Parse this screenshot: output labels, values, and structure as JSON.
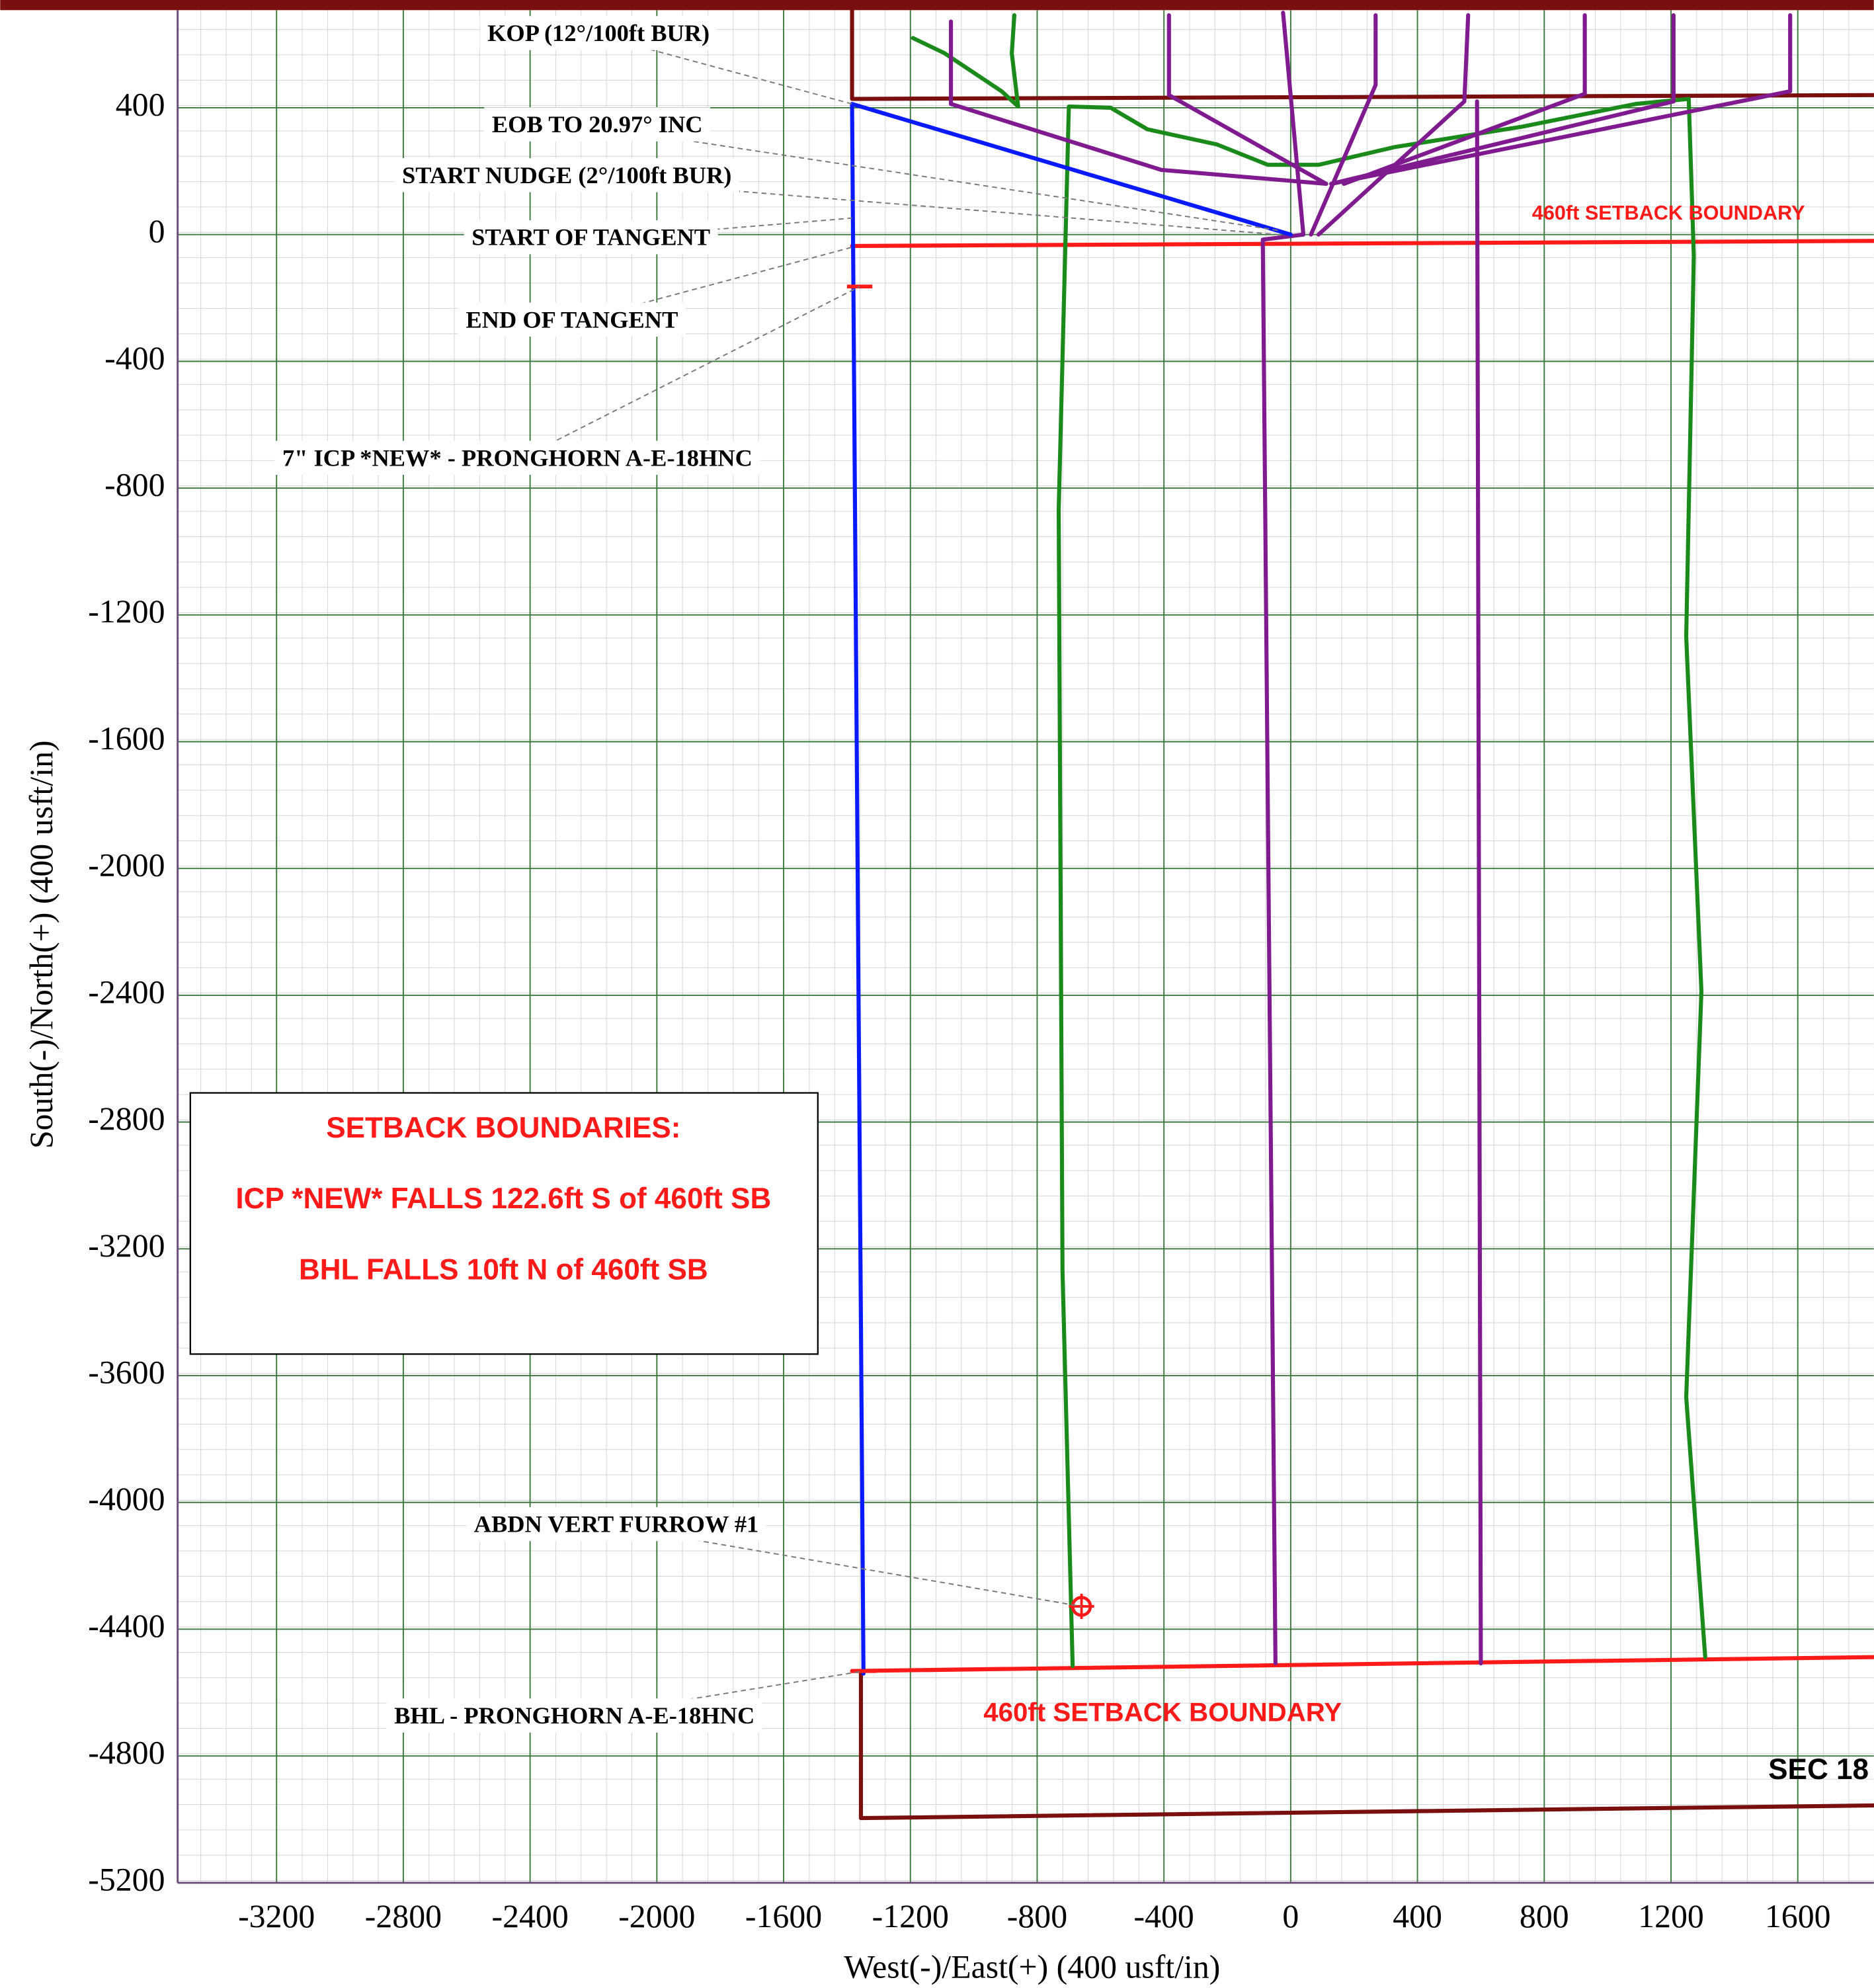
{
  "chart_data": {
    "type": "line",
    "xlabel": "West(-)/East(+) (400 usft/in)",
    "ylabel": "South(-)/North(+) (400 usft/in)",
    "xlim": [
      -3512,
      1840
    ],
    "ylim": [
      -5200,
      708
    ],
    "xticks": [
      -3200,
      -2800,
      -2400,
      -2000,
      -1600,
      -1200,
      -800,
      -400,
      0,
      400,
      800,
      1200,
      1600
    ],
    "yticks": [
      400,
      0,
      -400,
      -800,
      -1200,
      -1600,
      -2000,
      -2400,
      -2800,
      -3200,
      -3600,
      -4000,
      -4400,
      -4800,
      -5200
    ],
    "grid": true,
    "series": [
      {
        "color": "#7a0f0f",
        "x": [
          -1384,
          -1384,
          1840
        ],
        "values": [
          708,
          428,
          440
        ]
      },
      {
        "color": "#7a0f0f",
        "x": [
          -1356,
          -1356,
          1840
        ],
        "values": [
          -4532,
          -4996,
          -4956
        ]
      },
      {
        "color": "#ff1a1a",
        "x": [
          -1384,
          1840
        ],
        "values": [
          -36,
          -20
        ]
      },
      {
        "color": "#ff1a1a",
        "x": [
          -1384,
          1840
        ],
        "values": [
          -4532,
          -4488
        ]
      },
      {
        "color": "#1a8a1a",
        "x": [
          -1192,
          -1092,
          -912,
          -860,
          -880,
          -872
        ],
        "values": [
          620,
          572,
          452,
          404,
          572,
          692
        ]
      },
      {
        "color": "#1a8a1a",
        "x": [
          -688,
          -720,
          -732,
          -700,
          -568,
          -452,
          -232,
          -72,
          88,
          328,
          728,
          1088,
          1256,
          1272,
          1248,
          1296,
          1248,
          1308
        ],
        "values": [
          -4516,
          -3268,
          -868,
          404,
          400,
          332,
          284,
          220,
          220,
          276,
          340,
          412,
          428,
          -68,
          -1268,
          -2388,
          -3668,
          -4488
        ]
      },
      {
        "color": "#7f1a8f",
        "x": [
          -1072,
          -1072,
          -408,
          112
        ],
        "values": [
          672,
          412,
          204,
          160
        ]
      },
      {
        "color": "#7f1a8f",
        "x": [
          -384,
          -384,
          112
        ],
        "values": [
          692,
          440,
          160
        ]
      },
      {
        "color": "#7f1a8f",
        "x": [
          -24,
          40
        ],
        "values": [
          700,
          0
        ]
      },
      {
        "color": "#7f1a8f",
        "x": [
          268,
          268,
          64
        ],
        "values": [
          692,
          472,
          0
        ]
      },
      {
        "color": "#7f1a8f",
        "x": [
          560,
          548,
          88
        ],
        "values": [
          692,
          420,
          0
        ]
      },
      {
        "color": "#7f1a8f",
        "x": [
          928,
          928,
          168
        ],
        "values": [
          692,
          444,
          160
        ]
      },
      {
        "color": "#7f1a8f",
        "x": [
          1208,
          1208,
          128
        ],
        "values": [
          692,
          420,
          160
        ]
      },
      {
        "color": "#7f1a8f",
        "x": [
          1576,
          1576,
          128
        ],
        "values": [
          692,
          452,
          160
        ]
      },
      {
        "color": "#7f1a8f",
        "x": [
          40,
          -88,
          -48
        ],
        "values": [
          0,
          -16,
          -4508
        ]
      },
      {
        "color": "#7f1a8f",
        "x": [
          588,
          600
        ],
        "values": [
          420,
          -4508
        ]
      },
      {
        "color": "#0a1aff",
        "x": [
          0,
          -1384,
          -1348
        ],
        "values": [
          0,
          412,
          -4540
        ]
      }
    ],
    "markers": [
      {
        "shape": "tick",
        "color": "#ff1a1a",
        "x": -1360,
        "y": -164
      },
      {
        "shape": "tick",
        "color": "#ff1a1a",
        "x": -1348,
        "y": -4532
      },
      {
        "shape": "target",
        "color": "#ff1a1a",
        "x": -660,
        "y": -4328
      }
    ],
    "annotations": [
      {
        "text": "KOP (12°/100ft BUR)",
        "x": -1384,
        "y": 412
      },
      {
        "text": "EOB TO 20.97° INC",
        "x": -32,
        "y": 12
      },
      {
        "text": "START NUDGE (2°/100ft BUR)",
        "x": -40,
        "y": 0
      },
      {
        "text": "START OF TANGENT",
        "x": -1384,
        "y": 52
      },
      {
        "text": "END OF TANGENT",
        "x": -1384,
        "y": -40
      },
      {
        "text": "7\" ICP *NEW* - PRONGHORN A-E-18HNC",
        "x": -1360,
        "y": -164
      },
      {
        "text": "ABDN VERT FURROW #1",
        "x": -660,
        "y": -4328
      },
      {
        "text": "BHL - PRONGHORN A-E-18HNC",
        "x": -1348,
        "y": -4532
      }
    ],
    "region_labels": [
      "460ft SETBACK BOUNDARY",
      "460ft SETBACK BOUNDARY",
      "SEC 18"
    ],
    "note_box": [
      "SETBACK BOUNDARIES:",
      "ICP *NEW* FALLS 122.6ft S of 460ft SB",
      "BHL FALLS 10ft N of 460ft SB"
    ]
  }
}
